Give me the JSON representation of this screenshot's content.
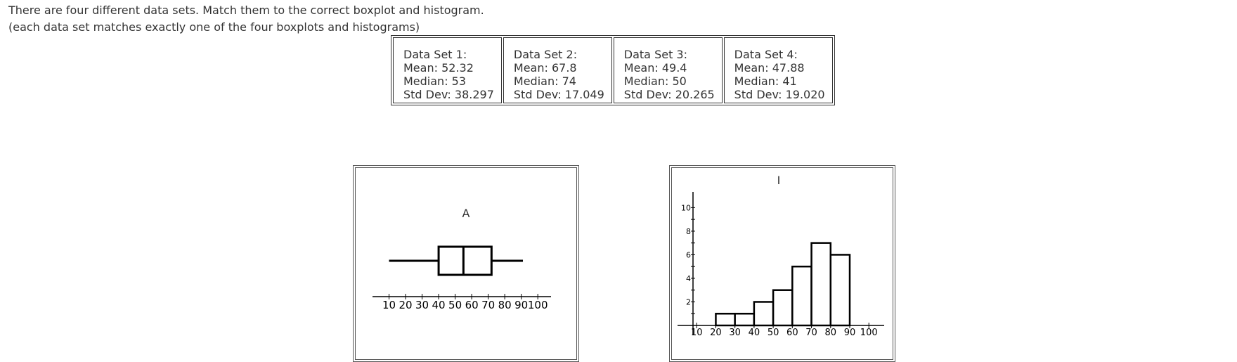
{
  "instructions": {
    "line1": "There are four different data sets. Match them to the correct boxplot and histogram.",
    "line2": "(each data set matches exactly one of the four boxplots and histograms)"
  },
  "data_sets": [
    {
      "name": "Data Set 1:",
      "mean": "Mean: 52.32",
      "median": "Median: 53",
      "std": "Std Dev: 38.297"
    },
    {
      "name": "Data Set 2:",
      "mean": "Mean: 67.8",
      "median": "Median: 74",
      "std": "Std Dev: 17.049"
    },
    {
      "name": "Data Set 3:",
      "mean": "Mean: 49.4",
      "median": "Median: 50",
      "std": "Std Dev: 20.265"
    },
    {
      "name": "Data Set 4:",
      "mean": "Mean: 47.88",
      "median": "Median: 41",
      "std": "Std Dev: 19.020"
    }
  ],
  "chart_data": [
    {
      "type": "boxplot",
      "title": "A",
      "min": 10,
      "q1": 40,
      "median": 55,
      "q3": 72,
      "max": 91,
      "x_ticks": [
        "10",
        "20",
        "30",
        "40",
        "50",
        "60",
        "70",
        "80",
        "90",
        "100"
      ],
      "xlim": [
        0,
        108
      ]
    },
    {
      "type": "bar",
      "title": "I",
      "bins": [
        [
          20,
          30
        ],
        [
          30,
          40
        ],
        [
          40,
          50
        ],
        [
          50,
          60
        ],
        [
          60,
          70
        ],
        [
          70,
          80
        ],
        [
          80,
          90
        ]
      ],
      "values": [
        1,
        1,
        2,
        3,
        5,
        7,
        6
      ],
      "x_ticks": [
        "10",
        "20",
        "30",
        "40",
        "50",
        "60",
        "70",
        "80",
        "90",
        "100"
      ],
      "y_ticks": [
        "2",
        "4",
        "6",
        "8",
        "10"
      ],
      "xlim": [
        0,
        108
      ],
      "ylim": [
        0,
        10.5
      ]
    }
  ]
}
